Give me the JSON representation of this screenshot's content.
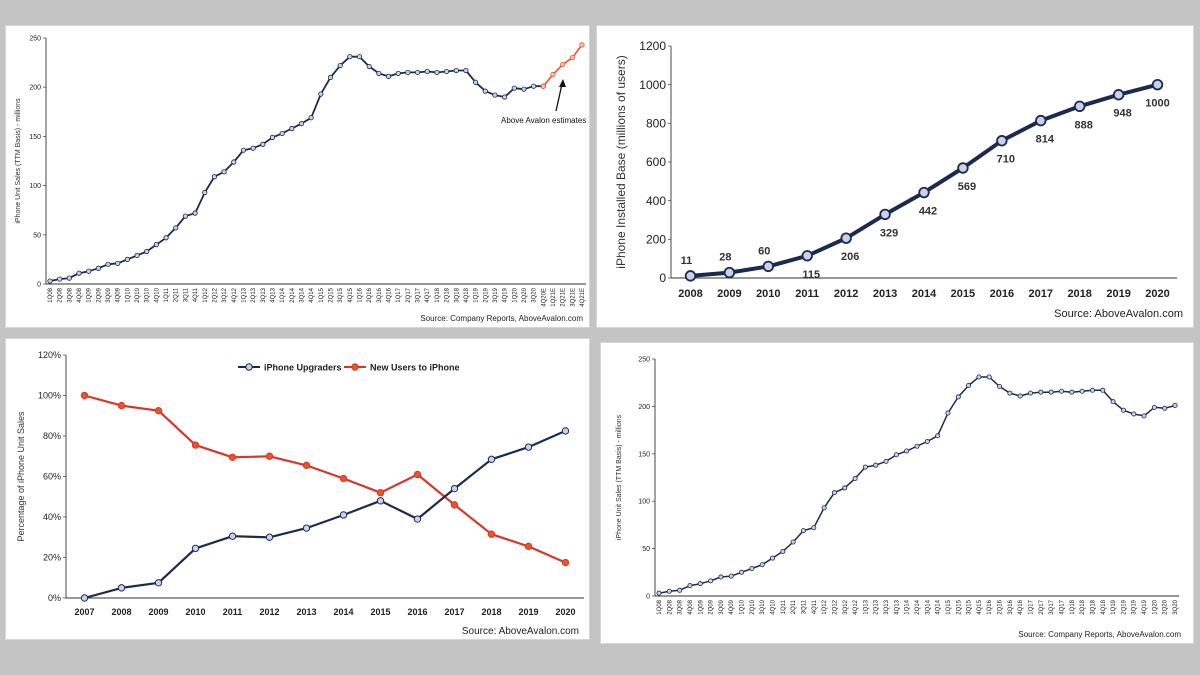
{
  "colors": {
    "navy": "#1b2a4e",
    "orange": "#e8542c",
    "red": "#d8362a",
    "marker": "#c9d2ea",
    "marker_orange": "#f2c6b0",
    "grid": "#d9d9d9"
  },
  "chart_data": [
    {
      "type": "line",
      "ylabel": "iPhone Unit Sales (TTM Basis) - millions",
      "ylim": [
        0,
        250
      ],
      "yticks": [
        0,
        50,
        100,
        150,
        200,
        250
      ],
      "categories": [
        "1Q08",
        "2Q08",
        "3Q08",
        "4Q08",
        "1Q09",
        "2Q09",
        "3Q09",
        "4Q09",
        "1Q10",
        "2Q10",
        "3Q10",
        "4Q10",
        "1Q11",
        "2Q11",
        "3Q11",
        "4Q11",
        "1Q12",
        "2Q12",
        "3Q12",
        "4Q12",
        "1Q13",
        "2Q13",
        "3Q13",
        "4Q13",
        "1Q14",
        "2Q14",
        "3Q14",
        "4Q14",
        "1Q15",
        "2Q15",
        "3Q15",
        "4Q15",
        "1Q16",
        "2Q16",
        "3Q16",
        "4Q16",
        "1Q17",
        "2Q17",
        "3Q17",
        "4Q17",
        "1Q18",
        "2Q18",
        "3Q18",
        "4Q18",
        "1Q19",
        "2Q19",
        "3Q19",
        "4Q19",
        "1Q20",
        "2Q20",
        "3Q20",
        "4Q20E",
        "1Q21E",
        "2Q21E",
        "3Q21E",
        "4Q21E"
      ],
      "series": [
        {
          "values": [
            3,
            5,
            6,
            11,
            13,
            16,
            20,
            21,
            25,
            29,
            33,
            40,
            47,
            57,
            69,
            72,
            93,
            109,
            114,
            124,
            136,
            138,
            142,
            149,
            153,
            158,
            163,
            169,
            193,
            210,
            222,
            231,
            231,
            221,
            214,
            211,
            214,
            215,
            215,
            216,
            215,
            216,
            217,
            217,
            205,
            196,
            192,
            190,
            199,
            198,
            201,
            201,
            213,
            223,
            230,
            243
          ]
        }
      ],
      "estimate_start_index": 51,
      "annotation": "Above Avalon estimates",
      "source": "Source: Company Reports, AboveAvalon.com"
    },
    {
      "type": "line",
      "ylabel": "iPhone Installed Base (millions of users)",
      "ylim": [
        0,
        1200
      ],
      "yticks": [
        0,
        200,
        400,
        600,
        800,
        1000,
        1200
      ],
      "categories": [
        "2008",
        "2009",
        "2010",
        "2011",
        "2012",
        "2013",
        "2014",
        "2015",
        "2016",
        "2017",
        "2018",
        "2019",
        "2020"
      ],
      "series": [
        {
          "values": [
            11,
            28,
            60,
            115,
            206,
            329,
            442,
            569,
            710,
            814,
            888,
            948,
            1000
          ]
        }
      ],
      "data_labels": [
        "11",
        "28",
        "60",
        "115",
        "206",
        "329",
        "442",
        "569",
        "710",
        "814",
        "888",
        "948",
        "1000"
      ],
      "source": "Source: AboveAvalon.com"
    },
    {
      "type": "line",
      "ylabel": "Percentage of iPhone Unit Sales",
      "ylim": [
        0,
        120
      ],
      "yticks": [
        "0%",
        "20%",
        "40%",
        "60%",
        "80%",
        "100%",
        "120%"
      ],
      "categories": [
        "2007",
        "2008",
        "2009",
        "2010",
        "2011",
        "2012",
        "2013",
        "2014",
        "2015",
        "2016",
        "2017",
        "2018",
        "2019",
        "2020"
      ],
      "series": [
        {
          "name": "iPhone Upgraders",
          "values": [
            0,
            5,
            7.5,
            24.5,
            30.5,
            30,
            34.5,
            41,
            48,
            39,
            54,
            68.5,
            74.5,
            82.5
          ]
        },
        {
          "name": "New Users to iPhone",
          "values": [
            100,
            95,
            92.5,
            75.5,
            69.5,
            70,
            65.5,
            59,
            52,
            61,
            46,
            31.5,
            25.5,
            17.5
          ]
        }
      ],
      "legend": "top",
      "source": "Source: AboveAvalon.com"
    },
    {
      "type": "line",
      "ylabel": "iPhone Unit Sales (TTM Basis) - millions",
      "ylim": [
        0,
        250
      ],
      "yticks": [
        0,
        50,
        100,
        150,
        200,
        250
      ],
      "categories": [
        "1Q08",
        "2Q08",
        "3Q08",
        "4Q08",
        "1Q09",
        "2Q09",
        "3Q09",
        "4Q09",
        "1Q10",
        "2Q10",
        "3Q10",
        "4Q10",
        "1Q11",
        "2Q11",
        "3Q11",
        "4Q11",
        "1Q12",
        "2Q12",
        "3Q12",
        "4Q12",
        "1Q13",
        "2Q13",
        "3Q13",
        "4Q13",
        "1Q14",
        "2Q14",
        "3Q14",
        "4Q14",
        "1Q15",
        "2Q15",
        "3Q15",
        "4Q15",
        "1Q16",
        "2Q16",
        "3Q16",
        "4Q16",
        "1Q17",
        "2Q17",
        "3Q17",
        "4Q17",
        "1Q18",
        "2Q18",
        "3Q18",
        "4Q18",
        "1Q19",
        "2Q19",
        "3Q19",
        "4Q19",
        "1Q20",
        "2Q20",
        "3Q20"
      ],
      "series": [
        {
          "values": [
            3,
            5,
            6,
            11,
            13,
            16,
            20,
            21,
            25,
            29,
            33,
            40,
            47,
            57,
            69,
            72,
            93,
            109,
            114,
            124,
            136,
            138,
            142,
            149,
            153,
            158,
            163,
            169,
            193,
            210,
            222,
            231,
            231,
            221,
            214,
            211,
            214,
            215,
            215,
            216,
            215,
            216,
            217,
            217,
            205,
            196,
            192,
            190,
            199,
            198,
            201
          ]
        }
      ],
      "source": "Source: Company Reports, AboveAvalon.com"
    }
  ]
}
